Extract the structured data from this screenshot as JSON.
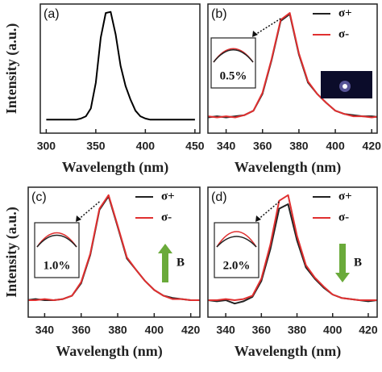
{
  "chart_data": [
    {
      "type": "line",
      "panel_label": "(a)",
      "xlabel": "Wavelength (nm)",
      "ylabel": "Intensity (a.u.)",
      "x": [
        300,
        305,
        310,
        315,
        320,
        325,
        330,
        335,
        340,
        345,
        350,
        355,
        360,
        365,
        370,
        375,
        380,
        385,
        390,
        395,
        400,
        405,
        410,
        415,
        420,
        425,
        430,
        435,
        440,
        445,
        450
      ],
      "series": [
        {
          "color": "#000000",
          "values": [
            0.02,
            0.02,
            0.02,
            0.02,
            0.02,
            0.02,
            0.02,
            0.03,
            0.05,
            0.12,
            0.35,
            0.75,
            0.97,
            0.98,
            0.78,
            0.5,
            0.32,
            0.2,
            0.1,
            0.05,
            0.03,
            0.02,
            0.02,
            0.02,
            0.02,
            0.02,
            0.02,
            0.02,
            0.02,
            0.02,
            0.02
          ]
        }
      ],
      "xlim": [
        294,
        455
      ],
      "ylim": [
        -0.1,
        1.05
      ],
      "xticks": [
        300,
        350,
        400,
        450
      ]
    },
    {
      "type": "line",
      "panel_label": "(b)",
      "xlabel": "Wavelength (nm)",
      "inset_label": "0.5%",
      "x": [
        330,
        335,
        340,
        345,
        350,
        355,
        360,
        365,
        370,
        375,
        380,
        385,
        390,
        395,
        400,
        405,
        410,
        415,
        420,
        425
      ],
      "series": [
        {
          "name": "σ+",
          "color": "#222222",
          "values": [
            0.04,
            0.05,
            0.04,
            0.05,
            0.06,
            0.1,
            0.25,
            0.55,
            0.9,
            0.96,
            0.6,
            0.35,
            0.25,
            0.17,
            0.1,
            0.07,
            0.06,
            0.05,
            0.05,
            0.04
          ]
        },
        {
          "name": "σ-",
          "color": "#e03030",
          "values": [
            0.05,
            0.04,
            0.05,
            0.04,
            0.06,
            0.1,
            0.26,
            0.56,
            0.91,
            0.97,
            0.61,
            0.36,
            0.25,
            0.17,
            0.1,
            0.07,
            0.05,
            0.05,
            0.04,
            0.05
          ]
        }
      ],
      "xlim": [
        330,
        423
      ],
      "ylim": [
        -0.1,
        1.05
      ],
      "xticks": [
        340,
        360,
        380,
        400,
        420
      ]
    },
    {
      "type": "line",
      "panel_label": "(c)",
      "xlabel": "Wavelength (nm)",
      "ylabel": "Intensity (a.u.)",
      "inset_label": "1.0%",
      "field_label": "B",
      "field_direction": "up",
      "x": [
        330,
        335,
        340,
        345,
        350,
        355,
        360,
        365,
        370,
        375,
        380,
        385,
        390,
        395,
        400,
        405,
        410,
        415,
        420,
        425
      ],
      "series": [
        {
          "name": "σ+",
          "color": "#222222",
          "values": [
            0.05,
            0.06,
            0.05,
            0.05,
            0.06,
            0.09,
            0.2,
            0.45,
            0.85,
            0.97,
            0.7,
            0.42,
            0.32,
            0.22,
            0.14,
            0.09,
            0.07,
            0.06,
            0.05,
            0.05
          ]
        },
        {
          "name": "σ-",
          "color": "#e03030",
          "values": [
            0.05,
            0.05,
            0.06,
            0.05,
            0.06,
            0.09,
            0.21,
            0.46,
            0.86,
            0.98,
            0.71,
            0.43,
            0.32,
            0.22,
            0.14,
            0.09,
            0.06,
            0.06,
            0.05,
            0.05
          ]
        }
      ],
      "xlim": [
        331,
        425
      ],
      "ylim": [
        -0.1,
        1.05
      ],
      "xticks": [
        340,
        360,
        380,
        400,
        420
      ]
    },
    {
      "type": "line",
      "panel_label": "(d)",
      "xlabel": "Wavelength (nm)",
      "inset_label": "2.0%",
      "field_label": "B",
      "field_direction": "down",
      "x": [
        330,
        335,
        340,
        345,
        350,
        355,
        360,
        365,
        370,
        375,
        380,
        385,
        390,
        395,
        400,
        405,
        410,
        415,
        420,
        425
      ],
      "series": [
        {
          "name": "σ+",
          "color": "#222222",
          "values": [
            0.05,
            0.04,
            0.05,
            0.02,
            0.04,
            0.08,
            0.22,
            0.5,
            0.86,
            0.9,
            0.58,
            0.34,
            0.24,
            0.16,
            0.1,
            0.07,
            0.06,
            0.05,
            0.04,
            0.05
          ]
        },
        {
          "name": "σ-",
          "color": "#e03030",
          "values": [
            0.05,
            0.05,
            0.06,
            0.05,
            0.06,
            0.09,
            0.24,
            0.54,
            0.93,
            0.98,
            0.62,
            0.36,
            0.25,
            0.17,
            0.1,
            0.07,
            0.06,
            0.05,
            0.05,
            0.05
          ]
        }
      ],
      "xlim": [
        330,
        425
      ],
      "ylim": [
        -0.1,
        1.05
      ],
      "xticks": [
        340,
        360,
        380,
        400,
        420
      ]
    }
  ]
}
